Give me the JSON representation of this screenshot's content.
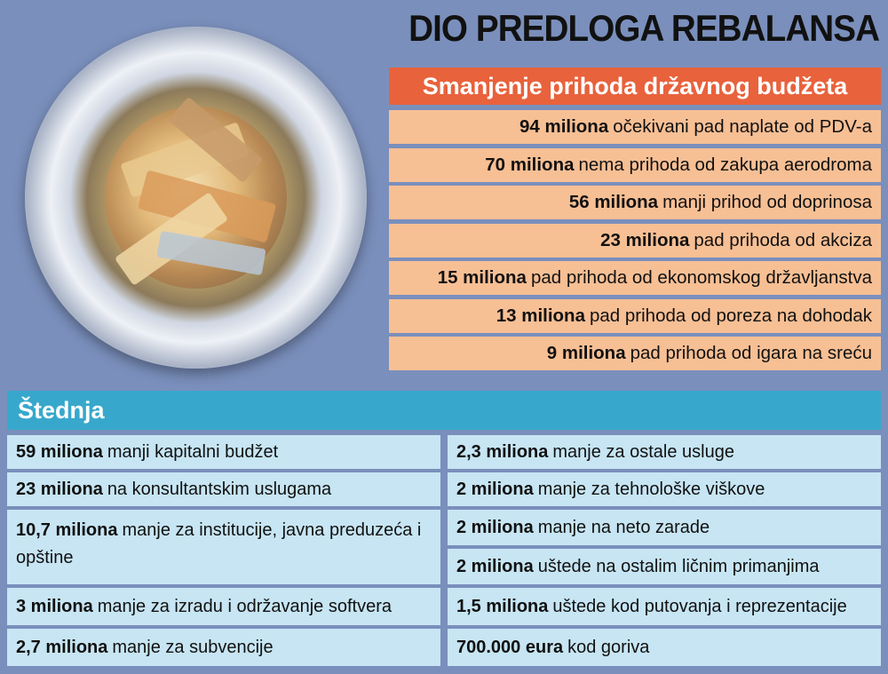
{
  "title": "DIO PREDLOGA REBALANSA",
  "revenue": {
    "header": "Smanjenje prihoda državnog budžeta",
    "items": [
      {
        "amount": "94 miliona",
        "text": "očekivani pad naplate od PDV-a"
      },
      {
        "amount": "70 miliona",
        "text": "nema prihoda od zakupa aerodroma"
      },
      {
        "amount": "56 miliona",
        "text": "manji prihod od doprinosa"
      },
      {
        "amount": "23 miliona",
        "text": "pad prihoda od akciza"
      },
      {
        "amount": "15 miliona",
        "text": "pad prihoda od ekonomskog državljanstva"
      },
      {
        "amount": "13 miliona",
        "text": "pad prihoda od poreza na dohodak"
      },
      {
        "amount": "9 miliona",
        "text": "pad prihoda od igara na sreću"
      }
    ]
  },
  "savings": {
    "header": "Štednja",
    "left": [
      {
        "amount": "59 miliona",
        "text": "manji kapitalni budžet"
      },
      {
        "amount": "23 miliona",
        "text": "na konsultantskim uslugama"
      },
      {
        "amount": "10,7 miliona",
        "text": "manje za institucije, javna preduzeća i opštine"
      },
      {
        "amount": "3 miliona",
        "text": "manje za izradu i održavanje softvera"
      },
      {
        "amount": "2,7 miliona",
        "text": "manje za subvencije"
      }
    ],
    "right": [
      {
        "amount": "2,3 miliona",
        "text": "manje za ostale usluge"
      },
      {
        "amount": "2 miliona",
        "text": "manje za tehnološke viškove"
      },
      {
        "amount": "2 miliona",
        "text": "manje na neto zarade"
      },
      {
        "amount": "2 miliona",
        "text": "uštede na ostalim ličnim primanjima"
      },
      {
        "amount": "1,5 miliona",
        "text": "uštede kod putovanja i reprezentacije"
      },
      {
        "amount": "700.000 eura",
        "text": "kod goriva"
      }
    ]
  },
  "colors": {
    "background": "#7a8fbc",
    "revenue_header": "#e8623c",
    "revenue_row": "#f7bf94",
    "savings_header": "#37a8cc",
    "savings_cell": "#c7e5f3"
  }
}
